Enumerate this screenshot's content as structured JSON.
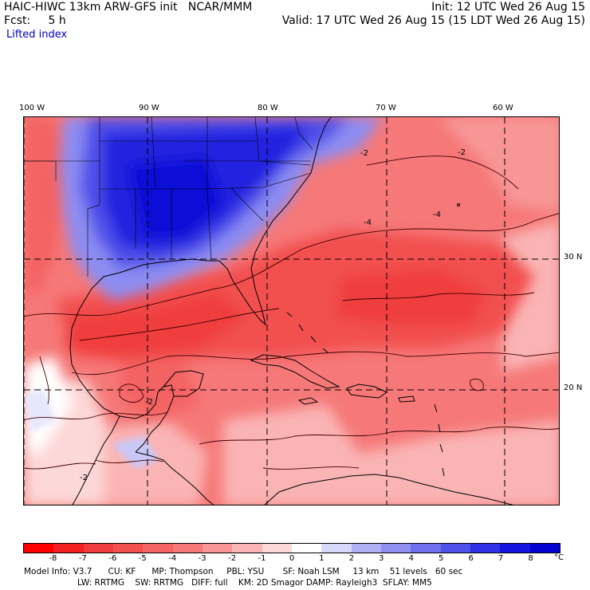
{
  "header": {
    "left_line1": "HAIC-HIWC 13km ARW-GFS init   NCAR/MMM",
    "left_line2": "Fcst:     5 h",
    "right_line1": "Init: 12 UTC Wed 26 Aug 15",
    "right_line2": "Valid: 17 UTC Wed 26 Aug 15 (15 LDT Wed 26 Aug 15)",
    "field": "Lifted index"
  },
  "map": {
    "longitude_labels": [
      "100 W",
      "90 W",
      "80 W",
      "70 W",
      "60 W"
    ],
    "latitude_labels": [
      "30 N",
      "20 N"
    ],
    "contour_labels": [
      "-2",
      "-2",
      "-4",
      "-4",
      "-2",
      "-2"
    ]
  },
  "colorbar": {
    "ticks": [
      "-8",
      "-7",
      "-6",
      "-5",
      "-4",
      "-3",
      "-2",
      "-1",
      "0",
      "1",
      "2",
      "3",
      "4",
      "5",
      "6",
      "7",
      "8"
    ],
    "unit": "°C",
    "colors": [
      "#ff0000",
      "#f22020",
      "#f03c3c",
      "#f25050",
      "#f46464",
      "#f67878",
      "#f89696",
      "#fab4b4",
      "#fdd8d8",
      "#ffffff",
      "#d8d8fb",
      "#b0b0f6",
      "#9090f2",
      "#7070ee",
      "#5050ea",
      "#3030e6",
      "#1414e0",
      "#0000d0"
    ]
  },
  "model_info": {
    "line1": "Model Info: V3.7      CU: KF      MP: Thompson     PBL: YSU       SF: Noah LSM     13 km    51 levels   60 sec",
    "line2": "LW: RRTMG    SW: RRTMG   DIFF: full    KM: 2D Smagor DAMP: Rayleigh3  SFLAY: MM5"
  }
}
